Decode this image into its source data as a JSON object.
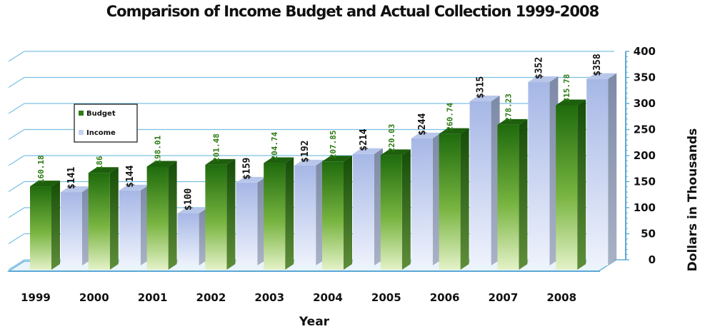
{
  "chart_data": {
    "type": "bar",
    "title": "Comparison of Income Budget and Actual Collection 1999-2008",
    "xlabel": "Year",
    "ylabel": "Dollars in Thousands",
    "ylim": [
      0,
      400
    ],
    "yticks": [
      "0",
      "50",
      "100",
      "150",
      "200",
      "250",
      "300",
      "350",
      "400"
    ],
    "categories": [
      "1999",
      "2000",
      "2001",
      "2002",
      "2003",
      "2004",
      "2005",
      "2006",
      "2007",
      "2008"
    ],
    "series": [
      {
        "name": "Budget",
        "color": "#2e7d15",
        "values": [
          160.18,
          186.0,
          198.01,
          201.48,
          204.74,
          207.85,
          220.03,
          260.74,
          278.23,
          315.78
        ],
        "labels": [
          "160.18",
          "186",
          "198.01",
          "201.48",
          "204.74",
          "207.85",
          "220.03",
          "260.74",
          "278.23",
          "315.78"
        ]
      },
      {
        "name": "Income",
        "color": "#b8c8ee",
        "values": [
          141,
          144,
          100,
          159,
          192,
          214,
          244,
          315,
          352,
          358
        ],
        "labels": [
          "$141",
          "$144",
          "$100",
          "$159",
          "$192",
          "$214",
          "$244",
          "$315",
          "$352",
          "$358"
        ]
      }
    ],
    "legend": "top-left",
    "grid": true
  }
}
